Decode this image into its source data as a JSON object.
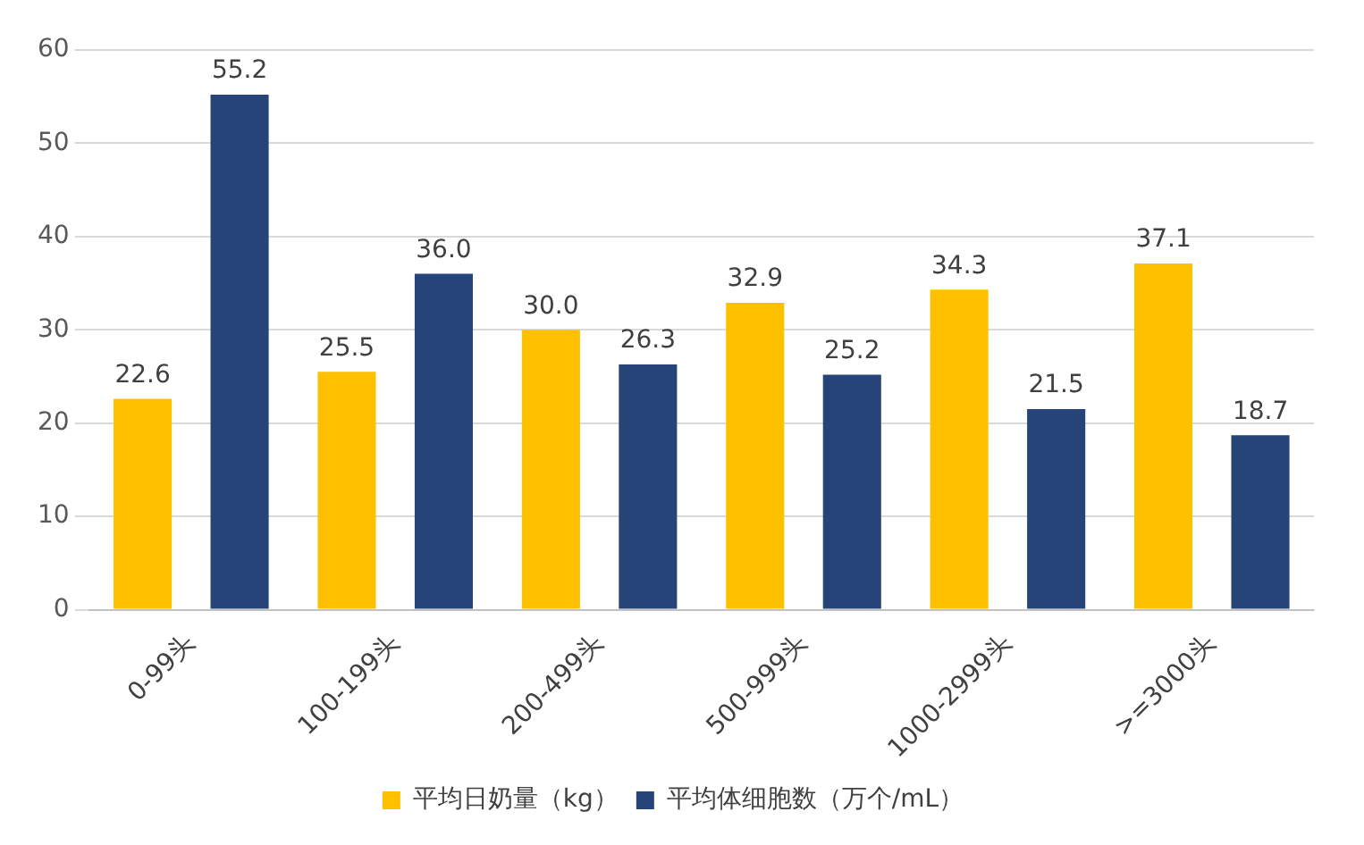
{
  "chart_data": {
    "type": "bar",
    "categories": [
      "0-99头",
      "100-199头",
      "200-499头",
      "500-999头",
      "1000-2999头",
      ">=3000头"
    ],
    "series": [
      {
        "name": "平均日奶量（kg）",
        "color": "#ffc000",
        "values": [
          22.6,
          25.5,
          30.0,
          32.9,
          34.3,
          37.1
        ],
        "value_labels": [
          "22.6",
          "25.5",
          "30.0",
          "32.9",
          "34.3",
          "37.1"
        ]
      },
      {
        "name": "平均体细胞数（万个/mL）",
        "color": "#264478",
        "values": [
          55.2,
          36.0,
          26.3,
          25.2,
          21.5,
          18.7
        ],
        "value_labels": [
          "55.2",
          "36.0",
          "26.3",
          "25.2",
          "21.5",
          "18.7"
        ]
      }
    ],
    "ylim": [
      0,
      60
    ],
    "yticks": [
      0,
      10,
      20,
      30,
      40,
      50,
      60
    ],
    "grid": "y",
    "legend": "bottom"
  }
}
